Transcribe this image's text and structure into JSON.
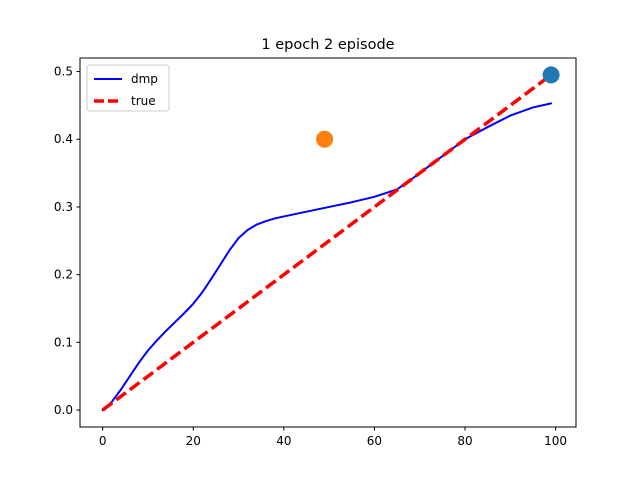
{
  "chart_data": {
    "type": "line",
    "title": "1 epoch 2 episode",
    "xlabel": "",
    "ylabel": "",
    "xlim": [
      -5,
      104.5
    ],
    "ylim": [
      -0.025,
      0.52
    ],
    "xticks": [
      0,
      20,
      40,
      60,
      80,
      100
    ],
    "xtick_labels": [
      "0",
      "20",
      "40",
      "60",
      "80",
      "100"
    ],
    "yticks": [
      0.0,
      0.1,
      0.2,
      0.3,
      0.4,
      0.5
    ],
    "ytick_labels": [
      "0.0",
      "0.1",
      "0.2",
      "0.3",
      "0.4",
      "0.5"
    ],
    "grid": false,
    "legend_position": "top-left",
    "series": [
      {
        "name": "dmp",
        "style": "solid",
        "color": "#0000ff",
        "x": [
          0,
          2,
          4,
          6,
          8,
          10,
          12,
          14,
          16,
          18,
          20,
          22,
          24,
          26,
          28,
          30,
          32,
          34,
          36,
          38,
          40,
          45,
          50,
          55,
          60,
          65,
          68,
          72,
          76,
          80,
          85,
          90,
          95,
          99
        ],
        "y": [
          0.0,
          0.012,
          0.03,
          0.05,
          0.07,
          0.088,
          0.103,
          0.117,
          0.13,
          0.143,
          0.157,
          0.174,
          0.194,
          0.215,
          0.236,
          0.254,
          0.266,
          0.274,
          0.279,
          0.283,
          0.286,
          0.293,
          0.3,
          0.307,
          0.315,
          0.326,
          0.34,
          0.36,
          0.38,
          0.4,
          0.418,
          0.435,
          0.447,
          0.453
        ]
      },
      {
        "name": "true",
        "style": "dashed",
        "color": "#ff0000",
        "x": [
          0,
          99
        ],
        "y": [
          0.0,
          0.495
        ]
      }
    ],
    "points": [
      {
        "x": 49,
        "y": 0.4,
        "color": "#ff7f0e"
      },
      {
        "x": 99,
        "y": 0.495,
        "color": "#1f77b4"
      }
    ]
  }
}
